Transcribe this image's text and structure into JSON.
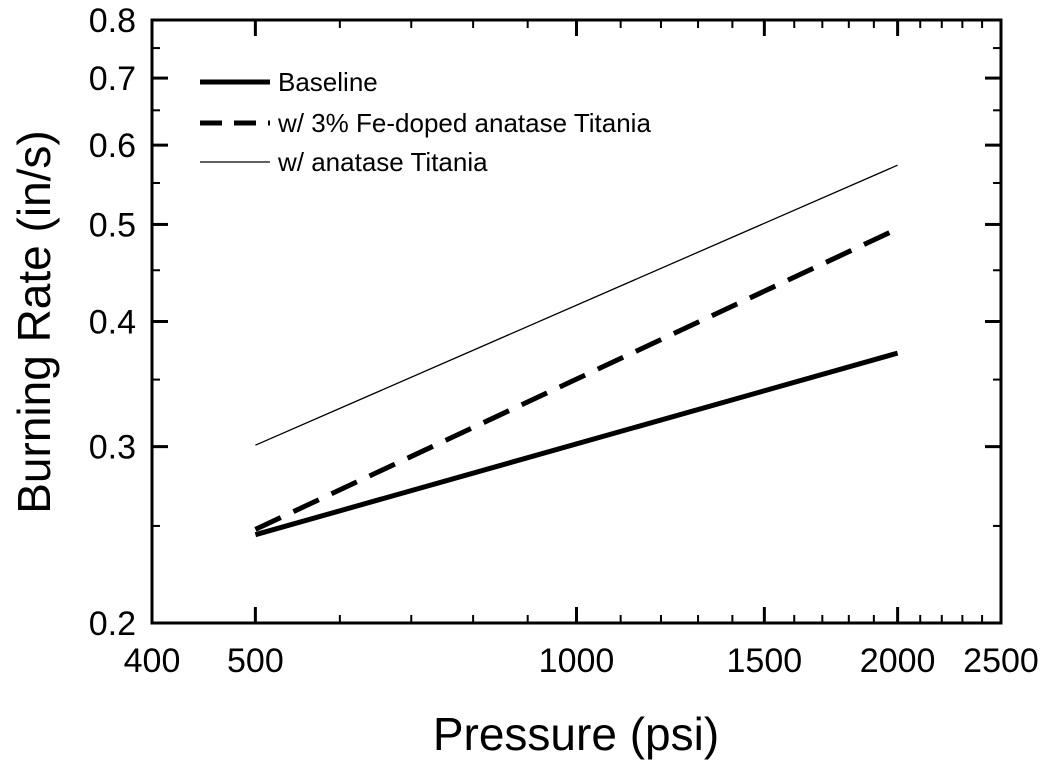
{
  "chart_data": {
    "type": "line",
    "title": "",
    "xlabel": "Pressure (psi)",
    "ylabel": "Burning Rate (in/s)",
    "xscale": "log",
    "yscale": "log",
    "xlim": [
      400,
      2500
    ],
    "ylim": [
      0.2,
      0.8
    ],
    "xticks": [
      400,
      500,
      1000,
      1500,
      2000,
      2500
    ],
    "xtick_labels": [
      "400",
      "500",
      "1000",
      "1500",
      "2000",
      "2500"
    ],
    "yticks": [
      0.2,
      0.3,
      0.4,
      0.5,
      0.6,
      0.7,
      0.8
    ],
    "ytick_labels": [
      "0.2",
      "0.3",
      "0.4",
      "0.5",
      "0.6",
      "0.7",
      "0.8"
    ],
    "grid": false,
    "legend_position": "top-left",
    "series": [
      {
        "name": "Baseline",
        "style": "solid-thick",
        "x": [
          500,
          2000
        ],
        "y": [
          0.245,
          0.372
        ]
      },
      {
        "name": "w/ 3% Fe-doped anatase Titania",
        "style": "dashed",
        "x": [
          500,
          2000
        ],
        "y": [
          0.248,
          0.495
        ]
      },
      {
        "name": "w/ anatase Titania",
        "style": "solid-thin",
        "x": [
          500,
          2000
        ],
        "y": [
          0.301,
          0.573
        ]
      }
    ],
    "colors": {
      "line": "#000000",
      "background": "#ffffff"
    }
  }
}
